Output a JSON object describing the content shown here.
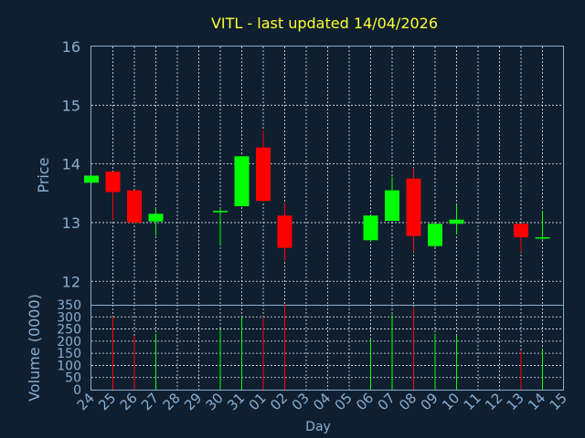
{
  "chart_data": {
    "type": "candlestick",
    "title": "VITL - last updated 14/04/2026",
    "xlabel": "Day",
    "ylabel_price": "Price",
    "ylabel_volume": "Volume (0000)",
    "grid": true,
    "colors": {
      "background": "#0f1f30",
      "up": "#00ff00",
      "down": "#ff0000",
      "axis": "#8aaed0",
      "title": "#ffff33",
      "grid": "#ffffff"
    },
    "x_tick_labels": [
      "24",
      "25",
      "26",
      "27",
      "28",
      "29",
      "30",
      "31",
      "01",
      "02",
      "03",
      "04",
      "05",
      "06",
      "07",
      "08",
      "09",
      "10",
      "11",
      "12",
      "13",
      "14",
      "15"
    ],
    "price_ylim": [
      11.6,
      16
    ],
    "price_ticks": [
      12,
      13,
      14,
      15,
      16
    ],
    "volume_ylim": [
      0,
      350
    ],
    "volume_ticks": [
      0,
      50,
      100,
      150,
      200,
      250,
      300,
      350
    ],
    "candles": [
      {
        "day": "24",
        "open": 13.68,
        "high": 13.8,
        "low": 13.68,
        "close": 13.8,
        "volume": 0
      },
      {
        "day": "25",
        "open": 13.87,
        "high": 13.87,
        "low": 13.05,
        "close": 13.52,
        "volume": 300
      },
      {
        "day": "26",
        "open": 13.55,
        "high": 13.55,
        "low": 12.98,
        "close": 13.0,
        "volume": 220
      },
      {
        "day": "27",
        "open": 13.02,
        "high": 13.25,
        "low": 12.78,
        "close": 13.15,
        "volume": 230
      },
      {
        "day": "30",
        "open": 13.2,
        "high": 13.25,
        "low": 12.6,
        "close": 13.2,
        "volume": 250
      },
      {
        "day": "31",
        "open": 13.28,
        "high": 14.13,
        "low": 13.28,
        "close": 14.13,
        "volume": 300
      },
      {
        "day": "01",
        "open": 14.28,
        "high": 14.57,
        "low": 13.35,
        "close": 13.37,
        "volume": 300
      },
      {
        "day": "02",
        "open": 13.12,
        "high": 13.32,
        "low": 12.35,
        "close": 12.57,
        "volume": 350
      },
      {
        "day": "06",
        "open": 12.7,
        "high": 13.12,
        "low": 12.68,
        "close": 13.12,
        "volume": 210
      },
      {
        "day": "07",
        "open": 13.03,
        "high": 13.78,
        "low": 13.03,
        "close": 13.55,
        "volume": 310
      },
      {
        "day": "08",
        "open": 13.75,
        "high": 13.93,
        "low": 12.5,
        "close": 12.77,
        "volume": 340
      },
      {
        "day": "09",
        "open": 12.6,
        "high": 12.98,
        "low": 12.58,
        "close": 12.98,
        "volume": 230
      },
      {
        "day": "10",
        "open": 12.98,
        "high": 13.3,
        "low": 12.8,
        "close": 13.05,
        "volume": 225
      },
      {
        "day": "13",
        "open": 12.98,
        "high": 12.98,
        "low": 12.5,
        "close": 12.75,
        "volume": 160
      },
      {
        "day": "14",
        "open": 12.73,
        "high": 13.2,
        "low": 12.7,
        "close": 12.75,
        "volume": 170
      }
    ]
  }
}
